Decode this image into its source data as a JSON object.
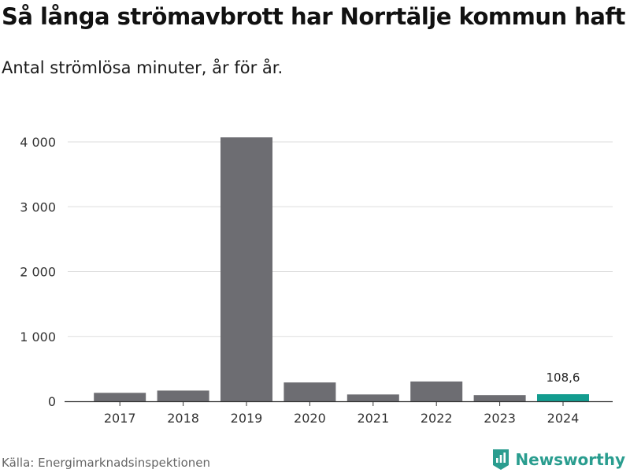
{
  "header": {
    "title": "Så långa strömavbrott har Norrtälje kommun haft",
    "subtitle": "Antal strömlösa minuter, år för år."
  },
  "footer": {
    "source": "Källa: Energimarknadsinspektionen",
    "brand": "Newsworthy"
  },
  "colors": {
    "bar": "#6d6d72",
    "highlight": "#139c8f",
    "grid": "#dddddd",
    "brand": "#2a9d8f"
  },
  "chart_data": {
    "type": "bar",
    "title": "Så långa strömavbrott har Norrtälje kommun haft",
    "subtitle": "Antal strömlösa minuter, år för år.",
    "xlabel": "",
    "ylabel": "",
    "categories": [
      "2017",
      "2018",
      "2019",
      "2020",
      "2021",
      "2022",
      "2023",
      "2024"
    ],
    "values": [
      130,
      165,
      4070,
      290,
      105,
      305,
      95,
      108.6
    ],
    "highlight_index": 7,
    "data_labels": [
      {
        "index": 7,
        "text": "108,6"
      }
    ],
    "ylim": [
      0,
      4200
    ],
    "yticks": [
      0,
      1000,
      2000,
      3000,
      4000
    ],
    "ytick_labels": [
      "0",
      "1 000",
      "2 000",
      "3 000",
      "4 000"
    ],
    "grid": true
  }
}
